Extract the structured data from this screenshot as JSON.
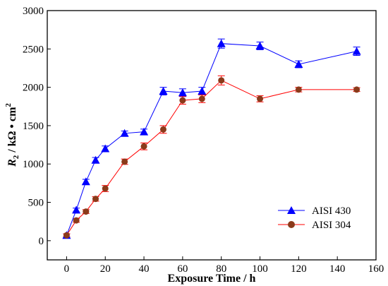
{
  "chart_data": {
    "type": "line",
    "xlabel": "Exposure Time / h",
    "ylabel": {
      "r": "R",
      "sub": "2",
      "rest": " / kΩ • cm",
      "sup": "2"
    },
    "xlim": [
      -10,
      160
    ],
    "ylim": [
      -250,
      3000
    ],
    "xticks": [
      0,
      20,
      40,
      60,
      80,
      100,
      120,
      140,
      160
    ],
    "yticks": [
      0,
      500,
      1000,
      1500,
      2000,
      2500,
      3000
    ],
    "grid": false,
    "legend_position": "bottom-right",
    "series": [
      {
        "name": "AISI 430",
        "color": "#0000ff",
        "marker": "triangle",
        "x": [
          0,
          5,
          10,
          15,
          20,
          30,
          40,
          50,
          60,
          70,
          80,
          100,
          120,
          150
        ],
        "y": [
          70,
          400,
          770,
          1050,
          1200,
          1400,
          1420,
          1950,
          1930,
          1950,
          2570,
          2540,
          2300,
          2470
        ],
        "err": [
          20,
          25,
          30,
          35,
          35,
          30,
          35,
          50,
          50,
          50,
          60,
          50,
          45,
          55
        ]
      },
      {
        "name": "AISI 304",
        "color": "#ff0000",
        "marker": "circle",
        "marker_fill": "#8b3a1a",
        "x": [
          0,
          5,
          10,
          15,
          20,
          30,
          40,
          50,
          60,
          70,
          80,
          100,
          120,
          150
        ],
        "y": [
          70,
          265,
          380,
          545,
          680,
          1030,
          1230,
          1450,
          1830,
          1850,
          2090,
          1850,
          1970,
          1970
        ],
        "err": [
          20,
          25,
          25,
          30,
          40,
          35,
          45,
          50,
          50,
          50,
          60,
          40,
          30,
          25
        ]
      }
    ]
  }
}
